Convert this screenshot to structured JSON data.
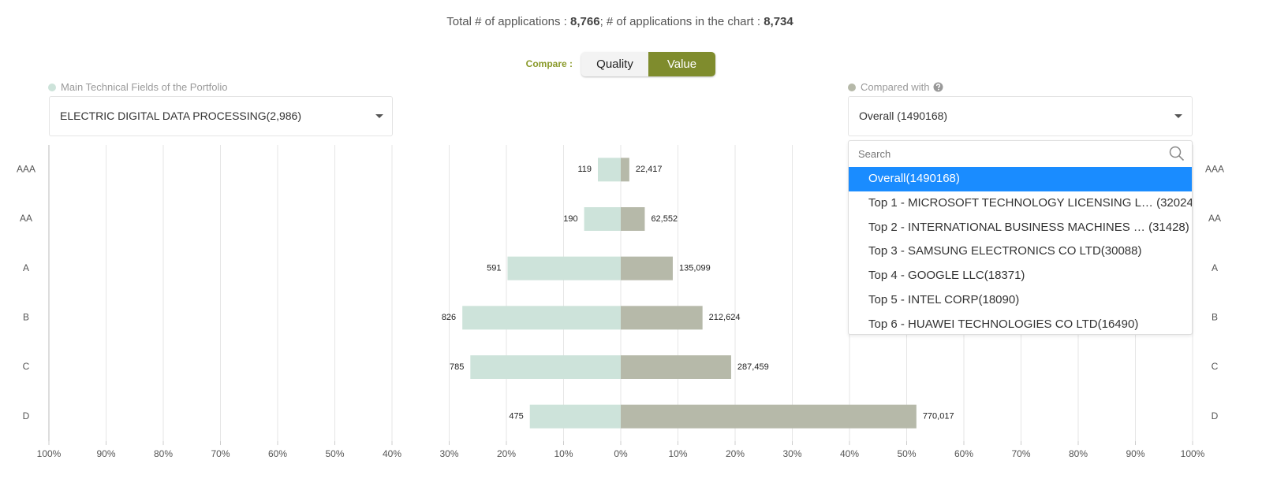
{
  "header": {
    "total_label": "Total # of applications :",
    "total": "8,766",
    "chart_label": "; # of applications in the chart :",
    "chart_total": "8,734"
  },
  "compare": {
    "label": "Compare :",
    "options": [
      "Quality",
      "Value"
    ],
    "active_index": 1
  },
  "portfolio_select": {
    "selected": "ELECTRIC DIGITAL DATA PROCESSING(2,986)"
  },
  "compared_select": {
    "selected": "Overall (1490168)",
    "search_placeholder": "Search",
    "highlighted_index": 0,
    "options": [
      "Overall(1490168)",
      "Top 1 - MICROSOFT TECHNOLOGY LICENSING L…  (32024)",
      "Top 2 - INTERNATIONAL BUSINESS MACHINES …  (31428)",
      "Top 3 - SAMSUNG ELECTRONICS CO LTD(30088)",
      "Top 4 - GOOGLE LLC(18371)",
      "Top 5 - INTEL CORP(18090)",
      "Top 6 - HUAWEI TECHNOLOGIES CO LTD(16490)"
    ]
  },
  "chart_data": {
    "type": "bar",
    "orientation": "horizontal",
    "categories": [
      "AAA",
      "AA",
      "A",
      "B",
      "C",
      "D"
    ],
    "series": [
      {
        "name": "Main Technical Fields of the Portfolio",
        "side": "left",
        "color": "#cde3da",
        "values": [
          4.0,
          6.4,
          19.8,
          27.7,
          26.3,
          15.9
        ],
        "counts": [
          119,
          190,
          591,
          826,
          785,
          475
        ]
      },
      {
        "name": "Compared with",
        "side": "right",
        "color": "#b6b9a9",
        "values": [
          1.5,
          4.2,
          9.1,
          14.3,
          19.3,
          51.7
        ],
        "counts": [
          {
            "value": 22417,
            "label": "22,417"
          },
          {
            "value": 62552,
            "label": "62,552"
          },
          {
            "value": 135099,
            "label": "135,099"
          },
          {
            "value": 212624,
            "label": "212,624"
          },
          {
            "value": 287459,
            "label": "287,459"
          },
          {
            "value": 770017,
            "label": "770,017"
          }
        ]
      }
    ],
    "xlim": [
      -100,
      100
    ],
    "xticks": [
      {
        "value": -100,
        "label": "100%"
      },
      {
        "value": -90,
        "label": "90%"
      },
      {
        "value": -80,
        "label": "80%"
      },
      {
        "value": -70,
        "label": "70%"
      },
      {
        "value": -60,
        "label": "60%"
      },
      {
        "value": -50,
        "label": "50%"
      },
      {
        "value": -40,
        "label": "40%"
      },
      {
        "value": -30,
        "label": "30%"
      },
      {
        "value": -20,
        "label": "20%"
      },
      {
        "value": -10,
        "label": "10%"
      },
      {
        "value": 0,
        "label": "0%"
      },
      {
        "value": 10,
        "label": "10%"
      },
      {
        "value": 20,
        "label": "20%"
      },
      {
        "value": 30,
        "label": "30%"
      },
      {
        "value": 40,
        "label": "40%"
      },
      {
        "value": 50,
        "label": "50%"
      },
      {
        "value": 60,
        "label": "60%"
      },
      {
        "value": 70,
        "label": "70%"
      },
      {
        "value": 80,
        "label": "80%"
      },
      {
        "value": 90,
        "label": "90%"
      },
      {
        "value": 100,
        "label": "100%"
      }
    ],
    "grid": true
  }
}
